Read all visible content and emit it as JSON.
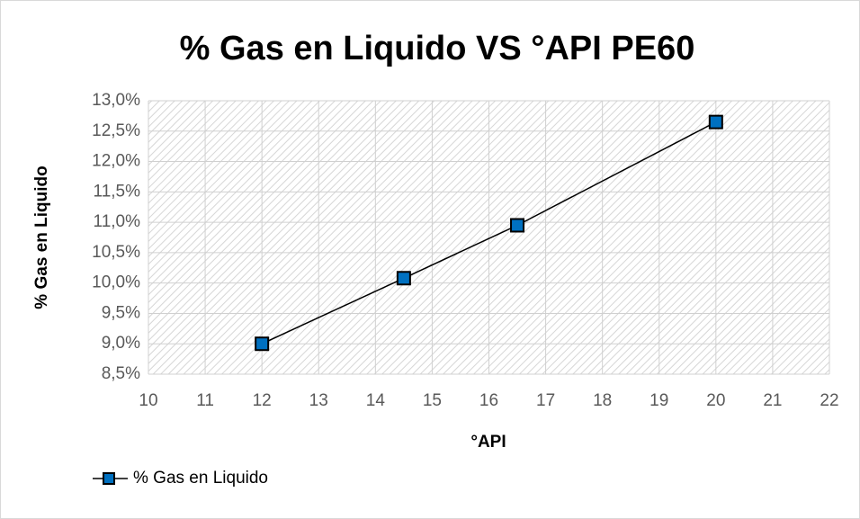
{
  "chart_data": {
    "type": "line",
    "title": "% Gas en Liquido VS °API   PE60",
    "xlabel": "°API",
    "ylabel": "% Gas en Liquido",
    "x": [
      12,
      14.5,
      16.5,
      20
    ],
    "series": [
      {
        "name": "% Gas en Liquido",
        "color": "#0070C0",
        "values": [
          9.0,
          10.08,
          10.95,
          12.65
        ]
      }
    ],
    "xlim": [
      10,
      22
    ],
    "xticks": [
      10,
      11,
      12,
      13,
      14,
      15,
      16,
      17,
      18,
      19,
      20,
      21,
      22
    ],
    "ylim": [
      8.5,
      13
    ],
    "yticks": [
      {
        "value": 8.5,
        "label": "8,5%"
      },
      {
        "value": 9,
        "label": "9,0%"
      },
      {
        "value": 9.5,
        "label": "9,5%"
      },
      {
        "value": 10,
        "label": "10,0%"
      },
      {
        "value": 10.5,
        "label": "10,5%"
      },
      {
        "value": 11,
        "label": "11,0%"
      },
      {
        "value": 11.5,
        "label": "11,5%"
      },
      {
        "value": 12,
        "label": "12,0%"
      },
      {
        "value": 12.5,
        "label": "12,5%"
      },
      {
        "value": 13,
        "label": "13,0%"
      }
    ],
    "grid": true,
    "legend": "bottom-left"
  }
}
